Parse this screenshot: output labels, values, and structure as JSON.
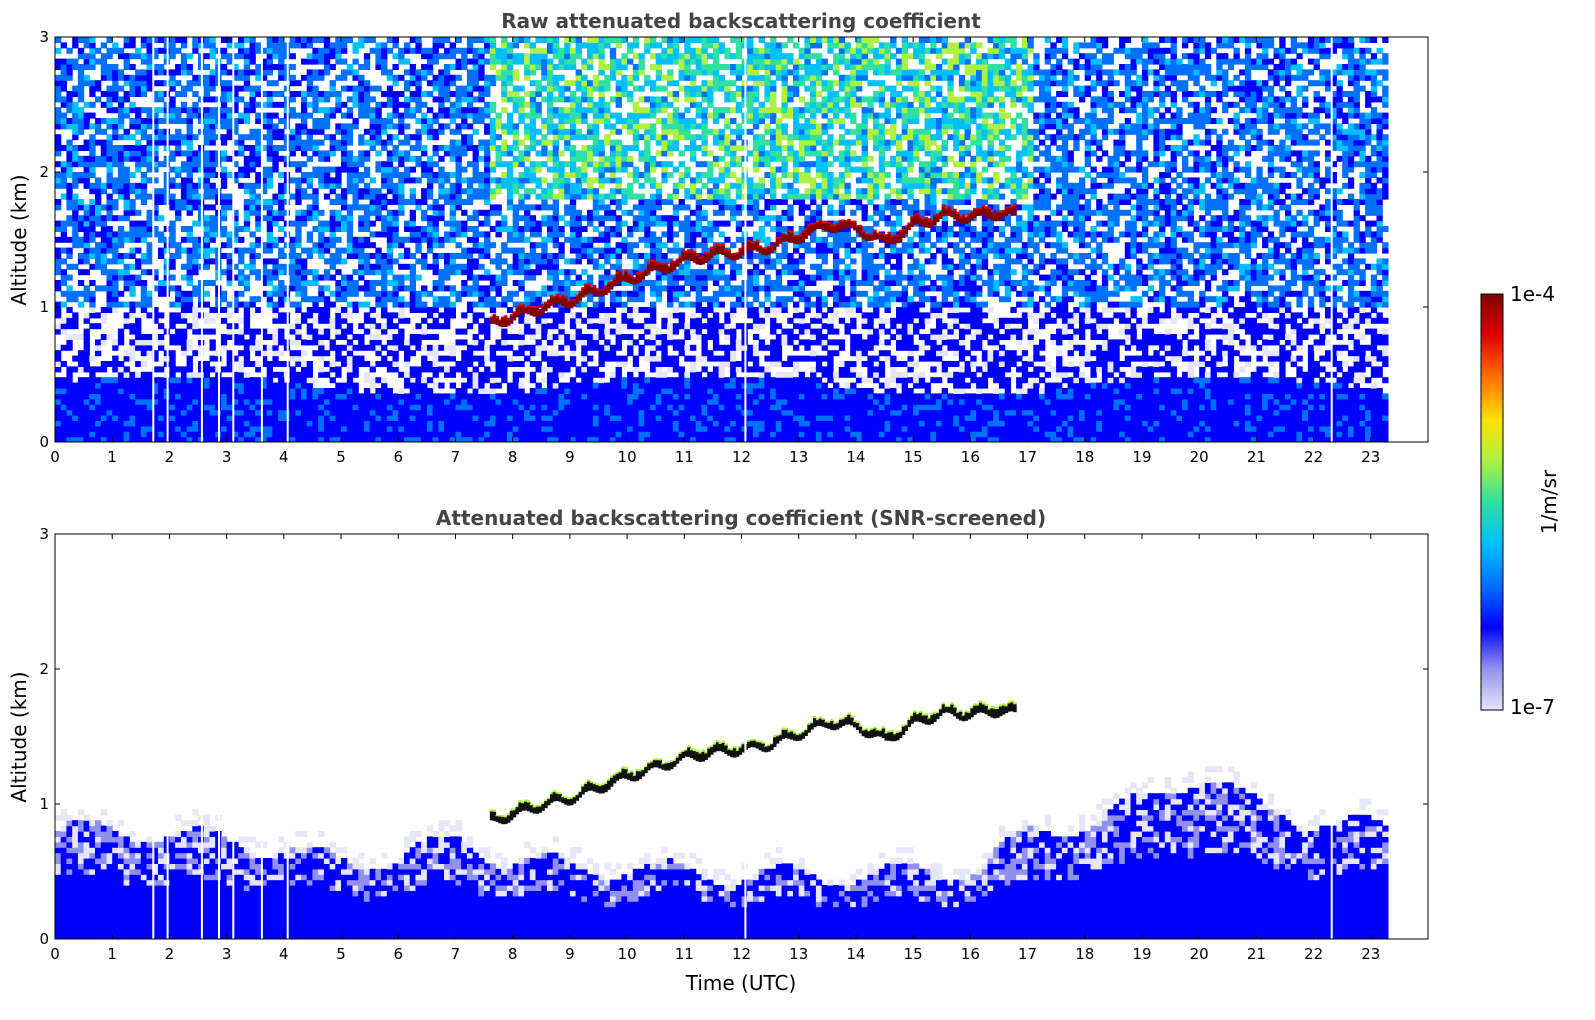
{
  "chart_data": [
    {
      "type": "heatmap",
      "title": "Raw attenuated backscattering coefficient",
      "xlabel": "",
      "ylabel": "Altitude (km)",
      "xlim": [
        0,
        24
      ],
      "ylim": [
        0,
        3
      ],
      "x_ticks": [
        "0",
        "1",
        "2",
        "3",
        "4",
        "5",
        "6",
        "7",
        "8",
        "9",
        "10",
        "11",
        "12",
        "13",
        "14",
        "15",
        "16",
        "17",
        "18",
        "19",
        "20",
        "21",
        "22",
        "23"
      ],
      "y_ticks": [
        "0",
        "1",
        "2",
        "3"
      ],
      "data_extent_hours": [
        0,
        23.3
      ],
      "missing_profiles_hours": [
        1.7,
        1.95,
        2.55,
        2.85,
        3.1,
        3.6,
        4.05,
        12.05,
        22.3
      ],
      "cloud_layer": {
        "time_utc": [
          7.6,
          8.0,
          8.5,
          9.0,
          9.5,
          10.0,
          10.5,
          11.0,
          11.5,
          12.0,
          12.5,
          13.0,
          13.5,
          14.0,
          14.5,
          15.0,
          15.5,
          16.0,
          16.5,
          16.8
        ],
        "altitude_km": [
          0.85,
          0.9,
          0.97,
          1.02,
          1.1,
          1.18,
          1.25,
          1.32,
          1.36,
          1.38,
          1.42,
          1.5,
          1.58,
          1.55,
          1.45,
          1.58,
          1.65,
          1.64,
          1.67,
          1.65
        ]
      },
      "high_signal_region": {
        "time_utc": [
          7.5,
          17.0
        ],
        "altitude_km": [
          1.8,
          3.0
        ]
      },
      "boundary_layer_top_km": 0.4
    },
    {
      "type": "heatmap",
      "title": "Attenuated backscattering coefficient (SNR-screened)",
      "xlabel": "Time (UTC)",
      "ylabel": "Altitude (km)",
      "xlim": [
        0,
        24
      ],
      "ylim": [
        0,
        3
      ],
      "x_ticks": [
        "0",
        "1",
        "2",
        "3",
        "4",
        "5",
        "6",
        "7",
        "8",
        "9",
        "10",
        "11",
        "12",
        "13",
        "14",
        "15",
        "16",
        "17",
        "18",
        "19",
        "20",
        "21",
        "22",
        "23"
      ],
      "y_ticks": [
        "0",
        "1",
        "2",
        "3"
      ],
      "data_extent_hours": [
        0,
        23.3
      ],
      "missing_profiles_hours": [
        1.7,
        1.95,
        2.55,
        2.85,
        3.1,
        3.6,
        4.05,
        12.05,
        22.3
      ],
      "cloud_layer": {
        "time_utc": [
          7.6,
          8.0,
          8.5,
          9.0,
          9.5,
          10.0,
          10.5,
          11.0,
          11.5,
          12.0,
          12.5,
          13.0,
          13.5,
          14.0,
          14.5,
          15.0,
          15.5,
          16.0,
          16.5,
          16.8
        ],
        "altitude_km": [
          0.85,
          0.9,
          0.97,
          1.02,
          1.1,
          1.18,
          1.25,
          1.32,
          1.36,
          1.38,
          1.42,
          1.5,
          1.58,
          1.55,
          1.45,
          1.58,
          1.65,
          1.64,
          1.67,
          1.65
        ]
      },
      "aerosol_layer_top_km": {
        "time_utc": [
          0,
          2,
          4,
          5,
          6,
          7,
          8,
          10,
          12,
          14,
          16,
          17,
          18,
          19,
          20,
          21,
          22,
          23.3
        ],
        "altitude_km": [
          0.8,
          0.75,
          0.65,
          0.55,
          0.6,
          0.7,
          0.55,
          0.5,
          0.45,
          0.45,
          0.5,
          0.75,
          0.85,
          1.0,
          1.2,
          0.95,
          0.85,
          0.8
        ]
      }
    }
  ],
  "colorbar": {
    "label": "1/m/sr",
    "max_label": "1e-4",
    "min_label": "1e-7",
    "scale": "log",
    "colors": [
      "#e6e6f8",
      "#9090ee",
      "#0000ff",
      "#0070ff",
      "#00c0ff",
      "#30e0a0",
      "#b0f040",
      "#ffe000",
      "#ff7000",
      "#e00000",
      "#800000"
    ]
  }
}
